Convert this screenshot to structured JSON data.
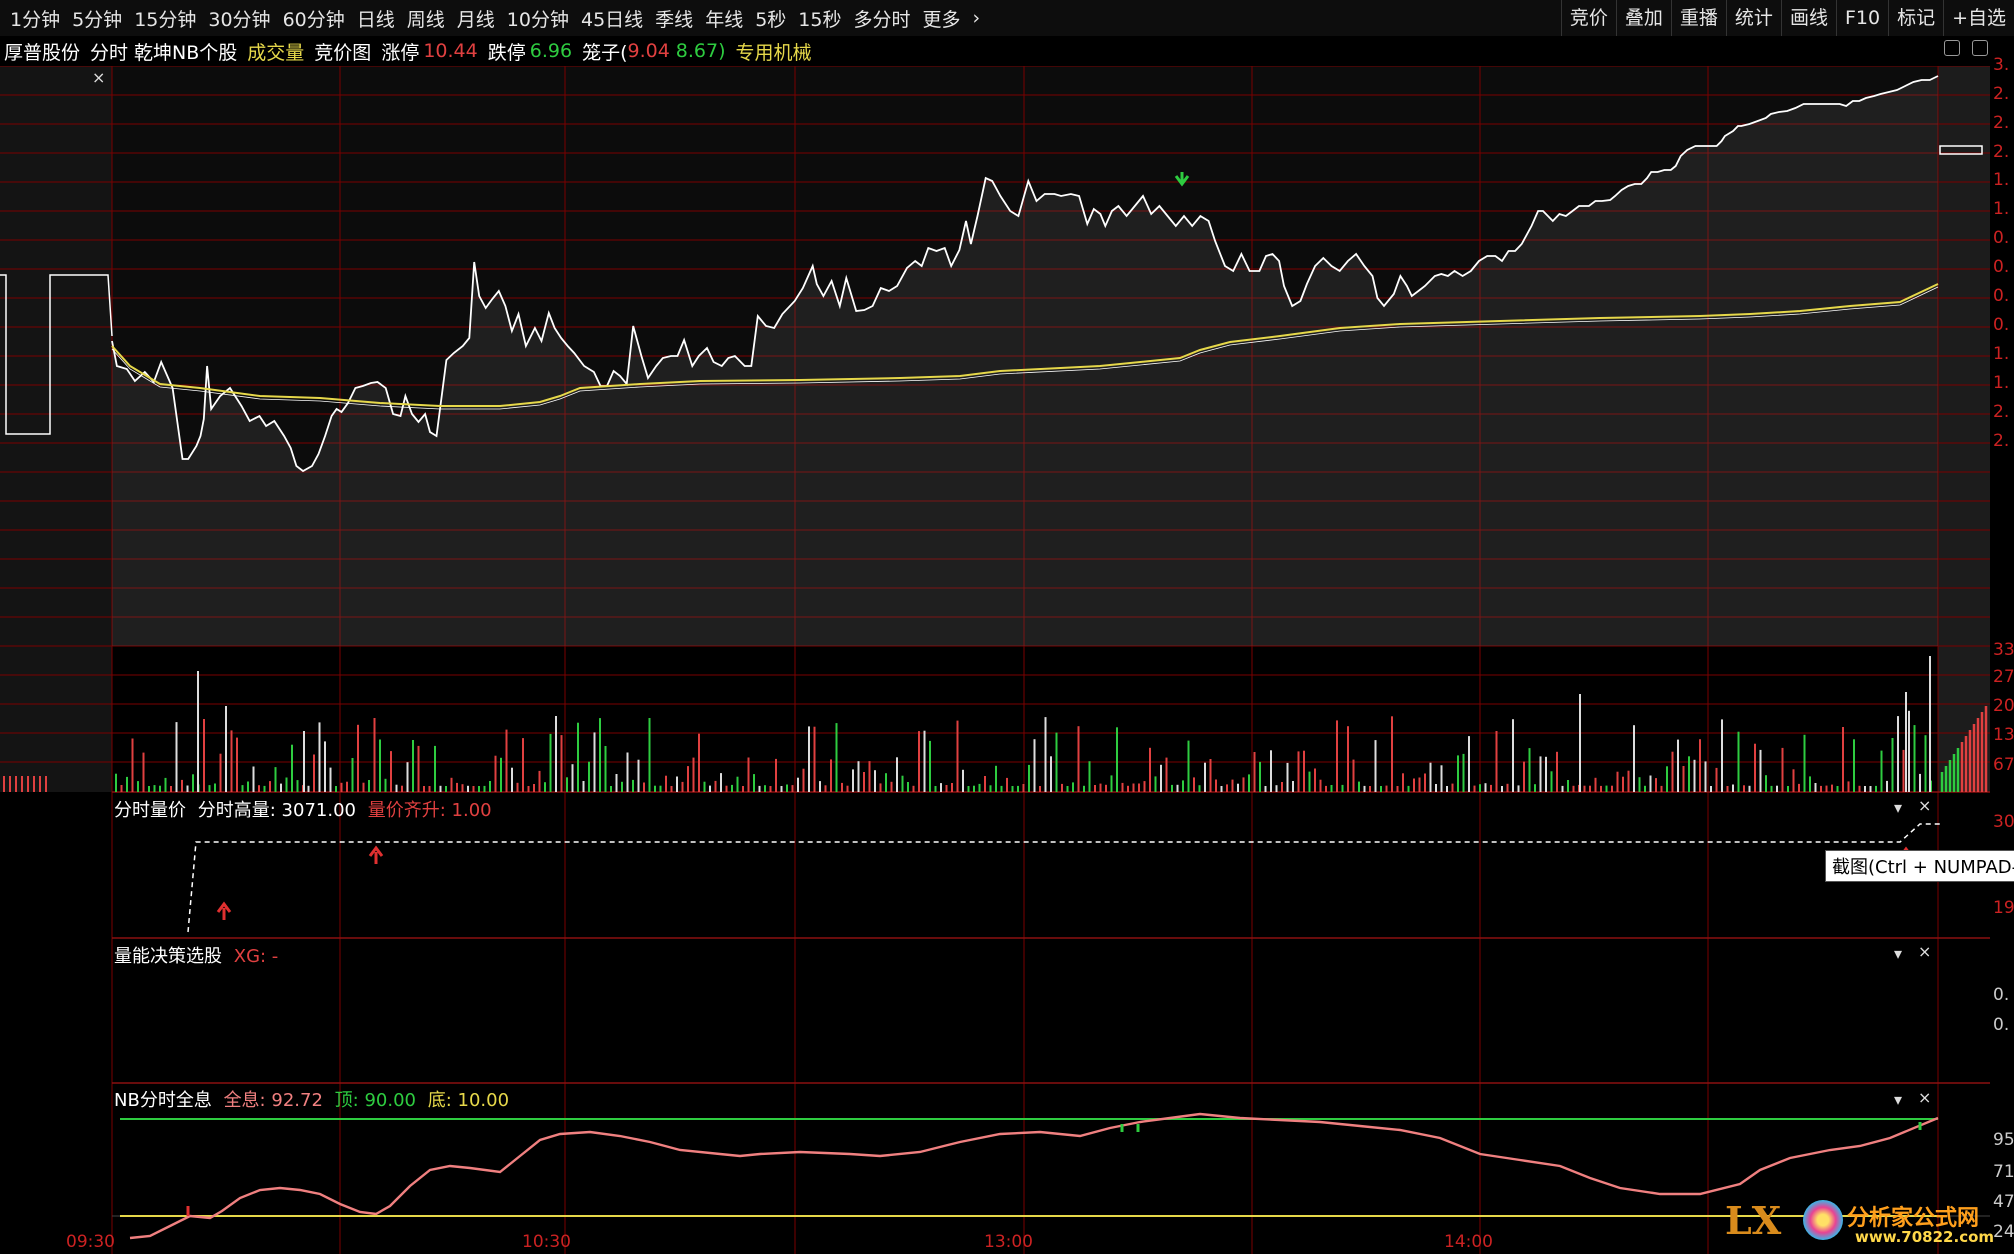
{
  "toolbar": {
    "timeframes": [
      "1分钟",
      "5分钟",
      "15分钟",
      "30分钟",
      "60分钟",
      "日线",
      "周线",
      "月线",
      "10分钟",
      "45日线",
      "季线",
      "年线",
      "5秒",
      "15秒",
      "多分时",
      "更多"
    ],
    "more_arrow": "›",
    "right_tools": [
      "竞价",
      "叠加",
      "重播",
      "统计",
      "画线",
      "F10",
      "标记",
      "+自选"
    ]
  },
  "info": {
    "stock_name": "厚普股份",
    "mode": "分时",
    "indicator": "乾坤NB个股",
    "volume_label": "成交量",
    "auction_label": "竞价图",
    "limit_up_label": "涨停",
    "limit_up_value": "10.44",
    "limit_down_label": "跌停",
    "limit_down_value": "6.96",
    "cage_label": "笼子(",
    "cage_high": "9.04",
    "cage_low": "8.67)",
    "sector": "专用机械"
  },
  "panel1": {
    "title": "分时量价",
    "high_label": "分时高量:",
    "high_value": "3071.00",
    "sync_label": "量价齐升:",
    "sync_value": "1.00"
  },
  "panel2": {
    "title": "量能决策选股",
    "xg": "XG: -"
  },
  "panel3": {
    "title": "NB分时全息",
    "full_label": "全息:",
    "full_value": "92.72",
    "top_label": "顶:",
    "top_value": "90.00",
    "bottom_label": "底:",
    "bottom_value": "10.00"
  },
  "tooltip": "截图(Ctrl + NUMPAD-",
  "time_labels": [
    "09:30",
    "10:30",
    "13:00",
    "14:00"
  ],
  "left_close": "×",
  "price_axis": [
    "3.",
    "2.",
    "2.",
    "2.",
    "1.",
    "1.",
    "0.",
    "0.",
    "0.",
    "0.",
    "1.",
    "1.",
    "2.",
    "2."
  ],
  "volume_axis": [
    "33",
    "27",
    "20",
    "13",
    "67"
  ],
  "p1_axis": [
    "30",
    "19"
  ],
  "p2_axis": [
    "0.",
    "0."
  ],
  "p3_axis": [
    "95",
    "71",
    "47",
    "24"
  ],
  "watermark": {
    "brand": "分析家公式网",
    "url": "www.70822.com",
    "lx": "LX"
  },
  "colors": {
    "grid": "#7a0000",
    "price_line": "#ffffff",
    "avg_line": "#e6d84a",
    "pink": "#f08080",
    "green": "#2ecc40"
  }
}
